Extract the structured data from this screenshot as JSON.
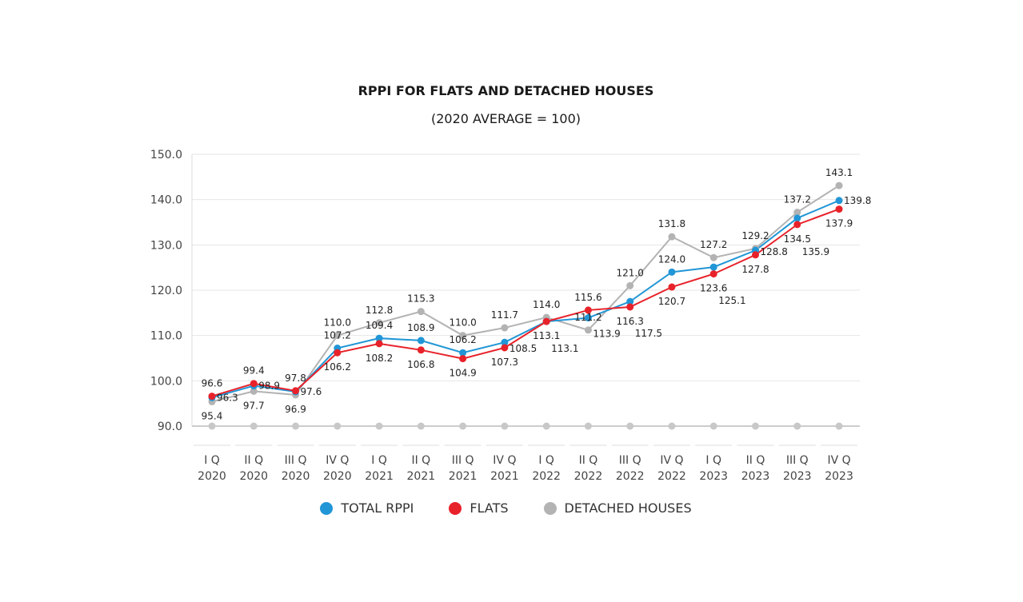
{
  "chart_data": {
    "type": "line",
    "title": "RPPI FOR FLATS AND DETACHED HOUSES",
    "subtitle": "(2020 AVERAGE = 100)",
    "categories": [
      [
        "I Q",
        "2020"
      ],
      [
        "II Q",
        "2020"
      ],
      [
        "III Q",
        "2020"
      ],
      [
        "IV Q",
        "2020"
      ],
      [
        "I Q",
        "2021"
      ],
      [
        "II Q",
        "2021"
      ],
      [
        "III Q",
        "2021"
      ],
      [
        "IV Q",
        "2021"
      ],
      [
        "I Q",
        "2022"
      ],
      [
        "II Q",
        "2022"
      ],
      [
        "III Q",
        "2022"
      ],
      [
        "IV Q",
        "2022"
      ],
      [
        "I Q",
        "2023"
      ],
      [
        "II Q",
        "2023"
      ],
      [
        "III Q",
        "2023"
      ],
      [
        "IV Q",
        "2023"
      ]
    ],
    "yticks": [
      "90.0",
      "100.0",
      "110.0",
      "120.0",
      "130.0",
      "140.0",
      "150.0"
    ],
    "ylim": [
      90,
      150
    ],
    "grid": true,
    "legend_position": "bottom",
    "series": [
      {
        "name": "TOTAL RPPI",
        "color": "#2196d6",
        "values": [
          96.3,
          98.9,
          97.6,
          107.2,
          109.4,
          108.9,
          106.2,
          108.5,
          113.1,
          113.9,
          117.5,
          124.0,
          125.1,
          128.8,
          135.9,
          139.8
        ]
      },
      {
        "name": "FLATS",
        "color": "#e8222a",
        "values": [
          96.6,
          99.4,
          97.8,
          106.2,
          108.2,
          106.8,
          104.9,
          107.3,
          113.1,
          115.6,
          116.3,
          120.7,
          123.6,
          127.8,
          134.5,
          137.9
        ]
      },
      {
        "name": "DETACHED HOUSES",
        "color": "#b3b3b3",
        "values": [
          95.4,
          97.7,
          96.9,
          110.0,
          112.8,
          115.3,
          110.0,
          111.7,
          114.0,
          111.2,
          121.0,
          131.8,
          127.2,
          129.2,
          137.2,
          143.1
        ]
      }
    ]
  }
}
